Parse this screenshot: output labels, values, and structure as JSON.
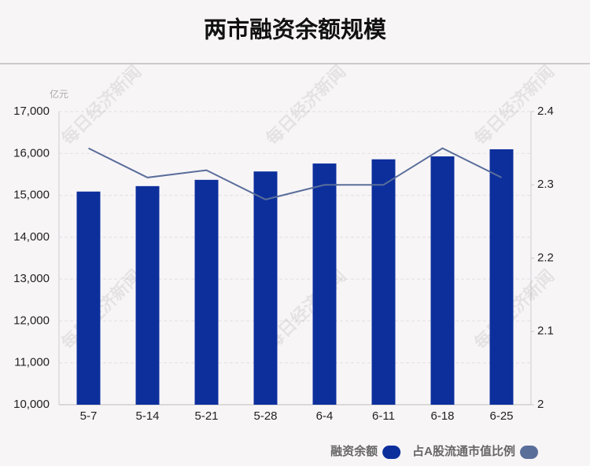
{
  "chart_data": {
    "type": "bar-line",
    "title": "两市融资余额规模",
    "y_unit": "亿元",
    "watermark": "每日经济新闻",
    "categories": [
      "5-7",
      "5-14",
      "5-21",
      "5-28",
      "6-4",
      "6-11",
      "6-18",
      "6-25"
    ],
    "series": [
      {
        "name": "融资余额",
        "type": "bar",
        "color": "#0c2f9c",
        "values": [
          15090,
          15220,
          15370,
          15570,
          15760,
          15860,
          15930,
          16100
        ]
      },
      {
        "name": "占A股流通市值比例",
        "type": "line",
        "axis": "y2",
        "color": "#5a6e9a",
        "values": [
          2.35,
          2.31,
          2.32,
          2.28,
          2.3,
          2.3,
          2.35,
          2.31
        ]
      }
    ],
    "ylim": [
      10000,
      17000
    ],
    "yticks": [
      {
        "value": 10000,
        "label": "10,000"
      },
      {
        "value": 11000,
        "label": "11,000"
      },
      {
        "value": 12000,
        "label": "12,000"
      },
      {
        "value": 13000,
        "label": "13,000"
      },
      {
        "value": 14000,
        "label": "14,000"
      },
      {
        "value": 15000,
        "label": "15,000"
      },
      {
        "value": 16000,
        "label": "16,000"
      },
      {
        "value": 17000,
        "label": "17,000"
      }
    ],
    "y2lim": [
      2,
      2.4
    ],
    "y2ticks": [
      2,
      2.1,
      2.2,
      2.3,
      2.4
    ],
    "grid": true,
    "legend": "bottom-right"
  }
}
